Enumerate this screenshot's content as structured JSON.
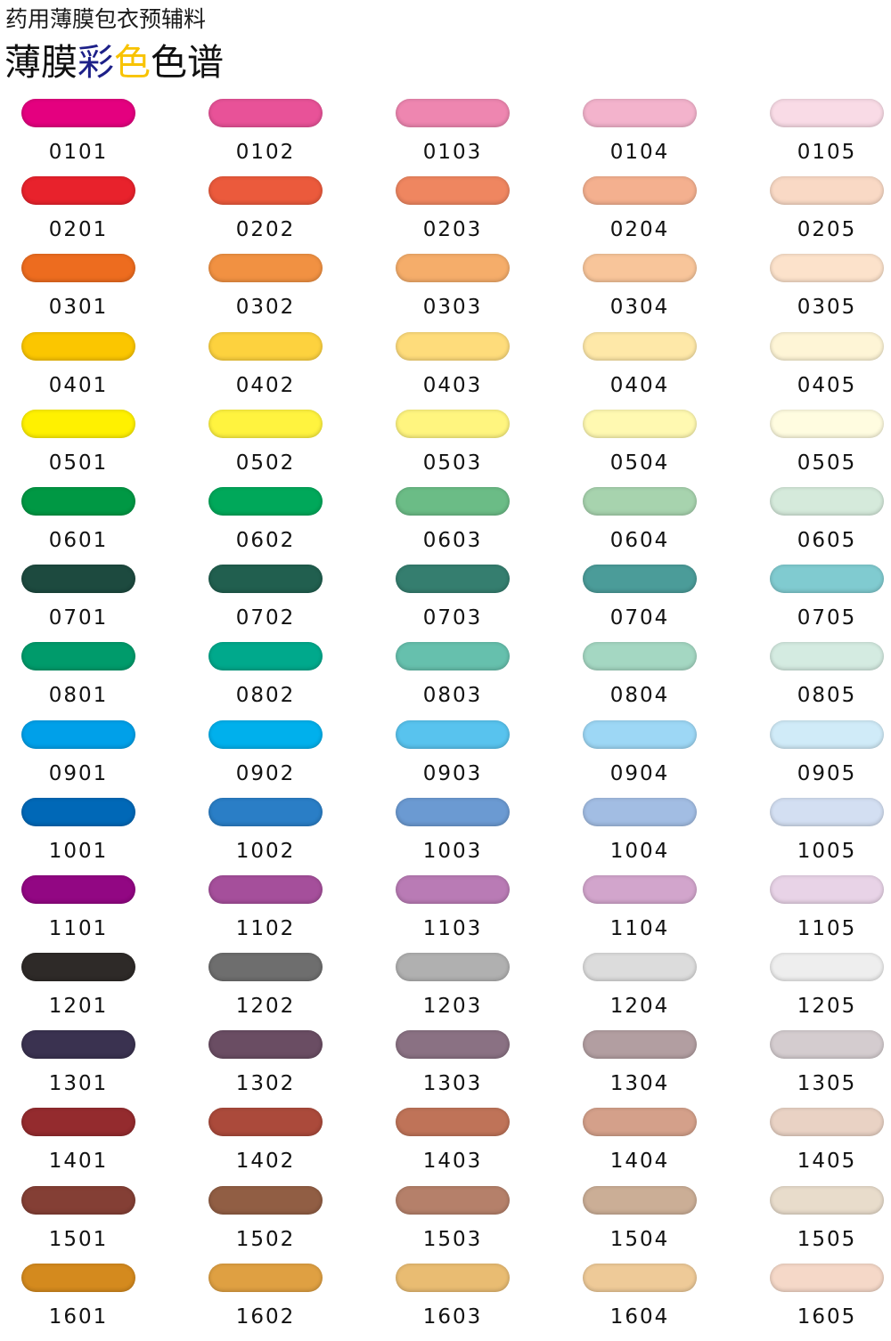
{
  "header": {
    "subtitle": "药用薄膜包衣预辅料",
    "title_parts": [
      {
        "text": "薄膜",
        "color": "#111111"
      },
      {
        "text": "彩",
        "color": "#1d2088"
      },
      {
        "text": "色",
        "color": "#f8c300"
      },
      {
        "text": "色谱",
        "color": "#111111"
      }
    ]
  },
  "swatches": [
    [
      {
        "code": "0101",
        "color": "#e4007f"
      },
      {
        "code": "0102",
        "color": "#e85298"
      },
      {
        "code": "0103",
        "color": "#ee86b0"
      },
      {
        "code": "0104",
        "color": "#f3b3cc"
      },
      {
        "code": "0105",
        "color": "#f9dbe6"
      }
    ],
    [
      {
        "code": "0201",
        "color": "#e8222c"
      },
      {
        "code": "0202",
        "color": "#eb5a3c"
      },
      {
        "code": "0203",
        "color": "#ef8660"
      },
      {
        "code": "0204",
        "color": "#f4b08f"
      },
      {
        "code": "0205",
        "color": "#f9d9c5"
      }
    ],
    [
      {
        "code": "0301",
        "color": "#ed6c1f"
      },
      {
        "code": "0302",
        "color": "#f19142"
      },
      {
        "code": "0303",
        "color": "#f5ad6a"
      },
      {
        "code": "0304",
        "color": "#f8c59a"
      },
      {
        "code": "0305",
        "color": "#fce2cb"
      }
    ],
    [
      {
        "code": "0401",
        "color": "#fbc600"
      },
      {
        "code": "0402",
        "color": "#fdd23e"
      },
      {
        "code": "0403",
        "color": "#fedc7b"
      },
      {
        "code": "0404",
        "color": "#fee8a8"
      },
      {
        "code": "0405",
        "color": "#fef5d6"
      }
    ],
    [
      {
        "code": "0501",
        "color": "#fff100"
      },
      {
        "code": "0502",
        "color": "#fff33f"
      },
      {
        "code": "0503",
        "color": "#fff57f"
      },
      {
        "code": "0504",
        "color": "#fff9b1"
      },
      {
        "code": "0505",
        "color": "#fffce0"
      }
    ],
    [
      {
        "code": "0601",
        "color": "#009844"
      },
      {
        "code": "0602",
        "color": "#00a85a"
      },
      {
        "code": "0603",
        "color": "#6bbc86"
      },
      {
        "code": "0604",
        "color": "#a7d3ae"
      },
      {
        "code": "0605",
        "color": "#d5eadb"
      }
    ],
    [
      {
        "code": "0701",
        "color": "#1d4a3f"
      },
      {
        "code": "0702",
        "color": "#215f4f"
      },
      {
        "code": "0703",
        "color": "#357e6f"
      },
      {
        "code": "0704",
        "color": "#4b9c99"
      },
      {
        "code": "0705",
        "color": "#80cbd0"
      }
    ],
    [
      {
        "code": "0801",
        "color": "#009b6b"
      },
      {
        "code": "0802",
        "color": "#00a98c"
      },
      {
        "code": "0803",
        "color": "#66c0ad"
      },
      {
        "code": "0804",
        "color": "#a4d7c2"
      },
      {
        "code": "0805",
        "color": "#d4ebe1"
      }
    ],
    [
      {
        "code": "0901",
        "color": "#00a0e9"
      },
      {
        "code": "0902",
        "color": "#00b0ec"
      },
      {
        "code": "0903",
        "color": "#58c3ee"
      },
      {
        "code": "0904",
        "color": "#9dd7f5"
      },
      {
        "code": "0905",
        "color": "#d0ebf8"
      }
    ],
    [
      {
        "code": "1001",
        "color": "#0068b7"
      },
      {
        "code": "1002",
        "color": "#2a7ec6"
      },
      {
        "code": "1003",
        "color": "#6b9ad2"
      },
      {
        "code": "1004",
        "color": "#a2bde3"
      },
      {
        "code": "1005",
        "color": "#d3dff2"
      }
    ],
    [
      {
        "code": "1101",
        "color": "#920783"
      },
      {
        "code": "1102",
        "color": "#a54f9b"
      },
      {
        "code": "1103",
        "color": "#b97bb5"
      },
      {
        "code": "1104",
        "color": "#d2a5cc"
      },
      {
        "code": "1105",
        "color": "#e8d3e7"
      }
    ],
    [
      {
        "code": "1201",
        "color": "#2e2a28"
      },
      {
        "code": "1202",
        "color": "#6e6e6e"
      },
      {
        "code": "1203",
        "color": "#b0b0b0"
      },
      {
        "code": "1204",
        "color": "#dcdcdc"
      },
      {
        "code": "1205",
        "color": "#eeeeee"
      }
    ],
    [
      {
        "code": "1301",
        "color": "#3a3250"
      },
      {
        "code": "1302",
        "color": "#6a4d63"
      },
      {
        "code": "1303",
        "color": "#8a7183"
      },
      {
        "code": "1304",
        "color": "#b29ea1"
      },
      {
        "code": "1305",
        "color": "#d4cccf"
      }
    ],
    [
      {
        "code": "1401",
        "color": "#942b2e"
      },
      {
        "code": "1402",
        "color": "#ab4a3b"
      },
      {
        "code": "1403",
        "color": "#bf7358"
      },
      {
        "code": "1404",
        "color": "#d4a08a"
      },
      {
        "code": "1405",
        "color": "#e9d2c4"
      }
    ],
    [
      {
        "code": "1501",
        "color": "#843f35"
      },
      {
        "code": "1502",
        "color": "#915e44"
      },
      {
        "code": "1503",
        "color": "#b5806a"
      },
      {
        "code": "1504",
        "color": "#cbae96"
      },
      {
        "code": "1505",
        "color": "#e8dccb"
      }
    ],
    [
      {
        "code": "1601",
        "color": "#d48a1e"
      },
      {
        "code": "1602",
        "color": "#dfa042"
      },
      {
        "code": "1603",
        "color": "#e9bc72"
      },
      {
        "code": "1604",
        "color": "#eeca98"
      },
      {
        "code": "1605",
        "color": "#f5d8c8"
      }
    ]
  ]
}
